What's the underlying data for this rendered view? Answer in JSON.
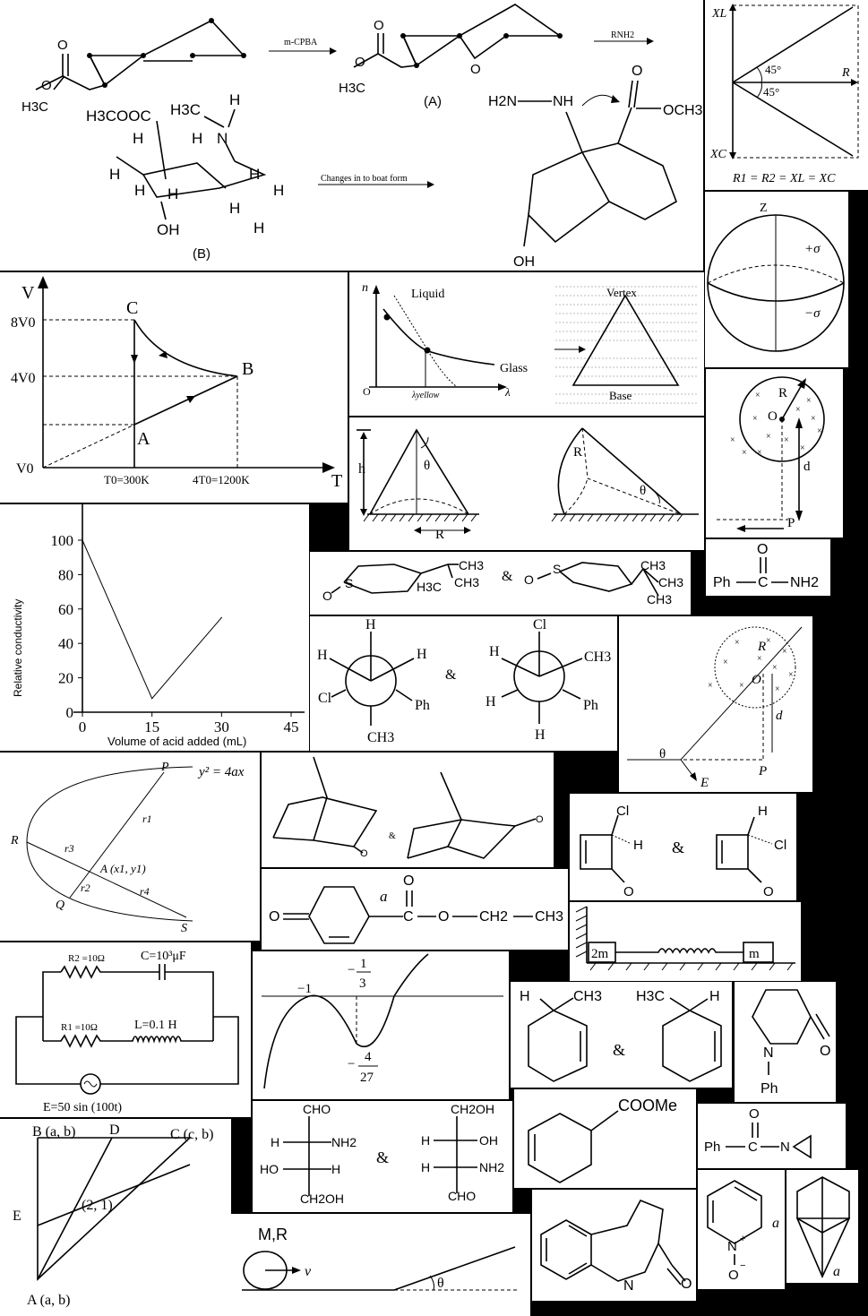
{
  "reaction": {
    "ester_o": "O",
    "ester_o2": "O",
    "methyl": "H3C",
    "reagent1": "m-CPBA",
    "reagent2": "RNH2",
    "product_o": "O",
    "product_o2": "O",
    "product_me": "H3C",
    "epoxide_o": "O",
    "label_a": "(A)"
  },
  "chair": {
    "ester": "H3COOC",
    "nme": "H3C",
    "n": "N",
    "h_on_n": "H",
    "h": "H",
    "oh": "OH",
    "label_b": "(B)",
    "arrow_text": "Changes in to boat form"
  },
  "bicyclo": {
    "h2n": "H2N",
    "nh": "NH",
    "o": "O",
    "och3": "OCH3",
    "oh": "OH"
  },
  "phasor": {
    "xl": "XL",
    "xc": "XC",
    "r": "R",
    "ang1": "45°",
    "ang2": "45°",
    "eq": "R1 = R2 = XL = XC"
  },
  "sphere": {
    "z": "Z",
    "plus": "+σ",
    "minus": "−σ"
  },
  "vt": {
    "v": "V",
    "t": "T",
    "v8": "8V0",
    "v4": "4V0",
    "v0": "V0",
    "a": "A",
    "b": "B",
    "c": "C",
    "t0": "T0=300K",
    "t4": "4T0=1200K"
  },
  "refr": {
    "n": "n",
    "liquid": "Liquid",
    "glass": "Glass",
    "o": "O",
    "lam": "λ",
    "lamy": "λyellow",
    "vertex": "Vertex",
    "base": "Base"
  },
  "cone": {
    "h": "h",
    "theta": "θ",
    "r": "R",
    "r2": "R",
    "theta2": "θ"
  },
  "field1": {
    "r": "R",
    "o": "O",
    "d": "d",
    "p": "P"
  },
  "benzamide": {
    "o": "O",
    "ph": "Ph",
    "c": "C",
    "nh2": "NH2"
  },
  "conductivity": {
    "ylabel": "Relative conductivity",
    "xlabel": "Volume of acid added (mL)",
    "yticks": [
      "0",
      "20",
      "40",
      "60",
      "80",
      "100"
    ],
    "xticks": [
      "0",
      "15",
      "30",
      "45"
    ]
  },
  "chart_data": {
    "type": "line",
    "xlabel": "Volume of acid added (mL)",
    "ylabel": "Relative conductivity",
    "x": [
      0,
      15,
      30
    ],
    "y": [
      100,
      8,
      55
    ],
    "xlim": [
      0,
      45
    ],
    "ylim": [
      0,
      100
    ],
    "grid": false
  },
  "thiane": {
    "s1": "S",
    "o1": "O",
    "ch3a": "CH3",
    "h3c": "H3C",
    "ch3b": "CH3",
    "amp": "&",
    "s2": "S",
    "o2": "O",
    "ch3c": "CH3",
    "ch3d": "CH3",
    "ch3e": "CH3"
  },
  "newman": {
    "h_top": "H",
    "h_left": "H",
    "h_right": "H",
    "cl": "Cl",
    "ph": "Ph",
    "ch3": "CH3",
    "amp": "&",
    "cl_top": "Cl",
    "h2_left": "H",
    "ch3_right": "CH3",
    "h2_low": "H",
    "ph2": "Ph",
    "h2_bot": "H"
  },
  "field2": {
    "r": "R",
    "o": "O",
    "d": "d",
    "p": "P",
    "theta": "θ",
    "e": "E"
  },
  "parabola": {
    "eq": "y² = 4ax",
    "p": "P",
    "r": "R",
    "q": "Q",
    "s": "S",
    "r1": "r1",
    "r2": "r2",
    "r3": "r3",
    "r4": "r4",
    "a": "A (x1, y1)"
  },
  "norbornanone": {
    "o1": "O",
    "amp": "&",
    "o2": "O"
  },
  "cyclobutenone": {
    "cl": "Cl",
    "h": "H",
    "o": "O",
    "amp": "&",
    "h2": "H",
    "cl2": "Cl",
    "o2": "O"
  },
  "ketoester": {
    "o": "O",
    "a": "a",
    "c": "C",
    "o2": "O",
    "o3": "O",
    "ch2": "CH2",
    "ch3": "CH3"
  },
  "spring": {
    "m2": "2m",
    "m": "m"
  },
  "circuit": {
    "r2": "R2 =10Ω",
    "c": "C=10³μF",
    "r1": "R1 =10Ω",
    "l": "L=0.1 H",
    "e": "E=50 sin (100t)"
  },
  "cubic": {
    "m1": "−1",
    "n13": "1",
    "d3": "3",
    "n4": "4",
    "d27": "27",
    "neg": "−",
    "neg2": "−"
  },
  "cyclohexene": {
    "h": "H",
    "ch3": "CH3",
    "amp": "&",
    "h3c": "H3C",
    "h2": "H"
  },
  "lactam": {
    "o": "O",
    "n": "N",
    "ph": "Ph"
  },
  "triangle": {
    "b": "B (a, b)",
    "d": "D",
    "c": "C (c, b)",
    "e": "E",
    "p": "(2, 1)",
    "a": "A (a, b)"
  },
  "fischer": {
    "cho": "CHO",
    "h": "H",
    "nh2": "NH2",
    "ho": "HO",
    "h2": "H",
    "ch2oh": "CH2OH",
    "amp": "&",
    "ch2oh2": "CH2OH",
    "h3": "H",
    "oh": "OH",
    "h4": "H",
    "nh2b": "NH2",
    "cho2": "CHO"
  },
  "cyhexene_ester": {
    "coome": "COOMe"
  },
  "aziridine": {
    "o": "O",
    "ph": "Ph",
    "c": "C",
    "n": "N"
  },
  "roll": {
    "mr": "M,R",
    "v": "v",
    "theta": "θ"
  },
  "quinolinone": {
    "n": "N",
    "o": "O"
  },
  "pyridine": {
    "n": "N",
    "plus": "+",
    "o": "O",
    "minus": "−",
    "a": "a"
  },
  "tricyclic": {
    "a": "a"
  }
}
